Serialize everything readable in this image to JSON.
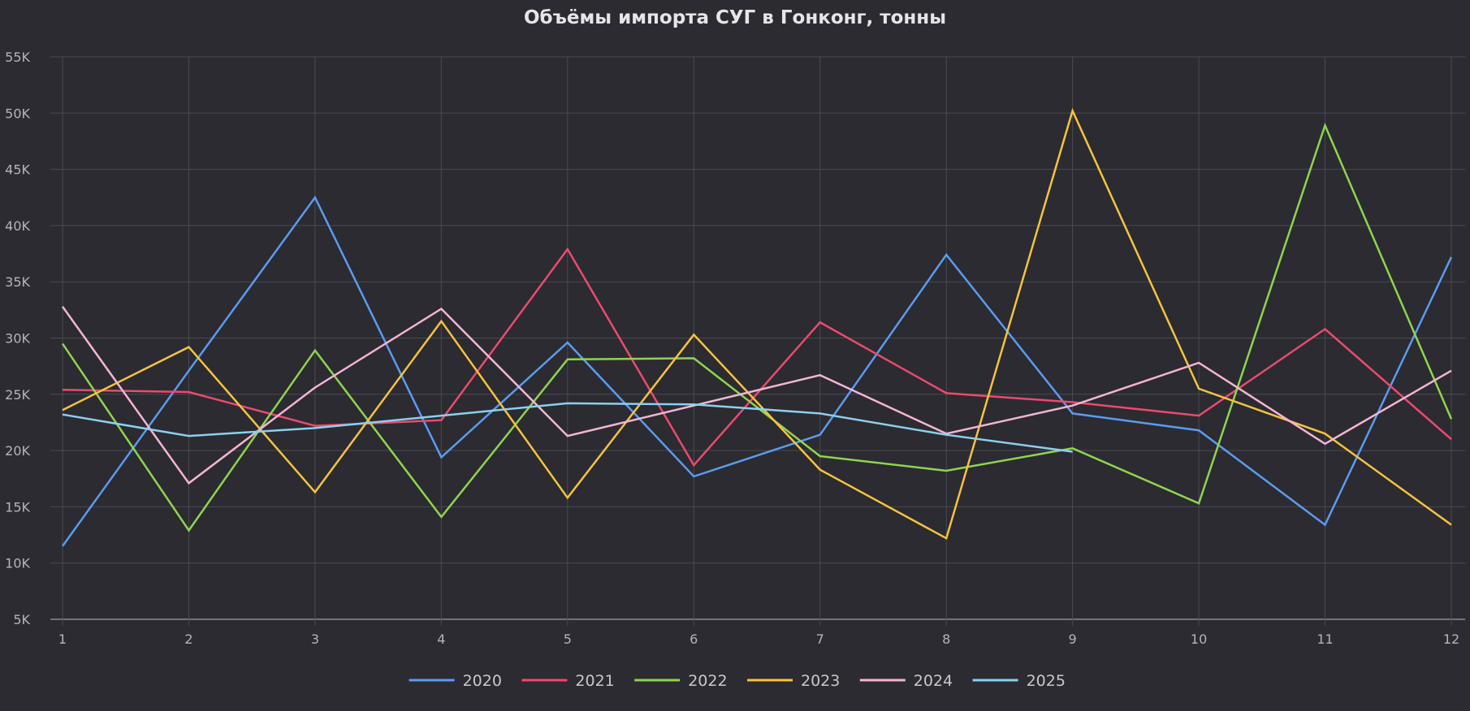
{
  "chart_data": {
    "type": "line",
    "title": "Объёмы импорта СУГ в Гонконг, тонны",
    "xlabel": "",
    "ylabel": "",
    "x": [
      1,
      2,
      3,
      4,
      5,
      6,
      7,
      8,
      9,
      10,
      11,
      12
    ],
    "x_tick_labels": [
      "1",
      "2",
      "3",
      "4",
      "5",
      "6",
      "7",
      "8",
      "9",
      "10",
      "11",
      "12"
    ],
    "ylim": [
      5000,
      55000
    ],
    "y_ticks": [
      5000,
      10000,
      15000,
      20000,
      25000,
      30000,
      35000,
      40000,
      45000,
      50000,
      55000
    ],
    "y_tick_labels": [
      "5K",
      "10K",
      "15K",
      "20K",
      "25K",
      "30K",
      "35K",
      "40K",
      "45K",
      "50K",
      "55K"
    ],
    "grid": true,
    "legend_position": "bottom",
    "series": [
      {
        "name": "2020",
        "color": "#5b9bef",
        "values": [
          11500,
          27100,
          42500,
          19400,
          29600,
          17700,
          21400,
          37400,
          23300,
          21800,
          13400,
          37200
        ]
      },
      {
        "name": "2021",
        "color": "#ec4a6d",
        "values": [
          25400,
          25200,
          22200,
          22700,
          37900,
          18700,
          31400,
          25100,
          24300,
          23100,
          30800,
          21000
        ]
      },
      {
        "name": "2022",
        "color": "#8fd44f",
        "values": [
          29500,
          12900,
          28900,
          14100,
          28100,
          28200,
          19500,
          18200,
          20200,
          15300,
          48900,
          22800
        ]
      },
      {
        "name": "2023",
        "color": "#f5c33f",
        "values": [
          23600,
          29200,
          16300,
          31500,
          15800,
          30300,
          18300,
          12200,
          50200,
          25500,
          21500,
          13400
        ]
      },
      {
        "name": "2024",
        "color": "#f4b4d4",
        "values": [
          32800,
          17100,
          25600,
          32600,
          21300,
          24000,
          26700,
          21500,
          24000,
          27800,
          20600,
          27100
        ]
      },
      {
        "name": "2025",
        "color": "#8dcfef",
        "values": [
          23200,
          21300,
          22000,
          23100,
          24200,
          24100,
          23300,
          21400,
          19900,
          null,
          null,
          null
        ]
      }
    ]
  }
}
